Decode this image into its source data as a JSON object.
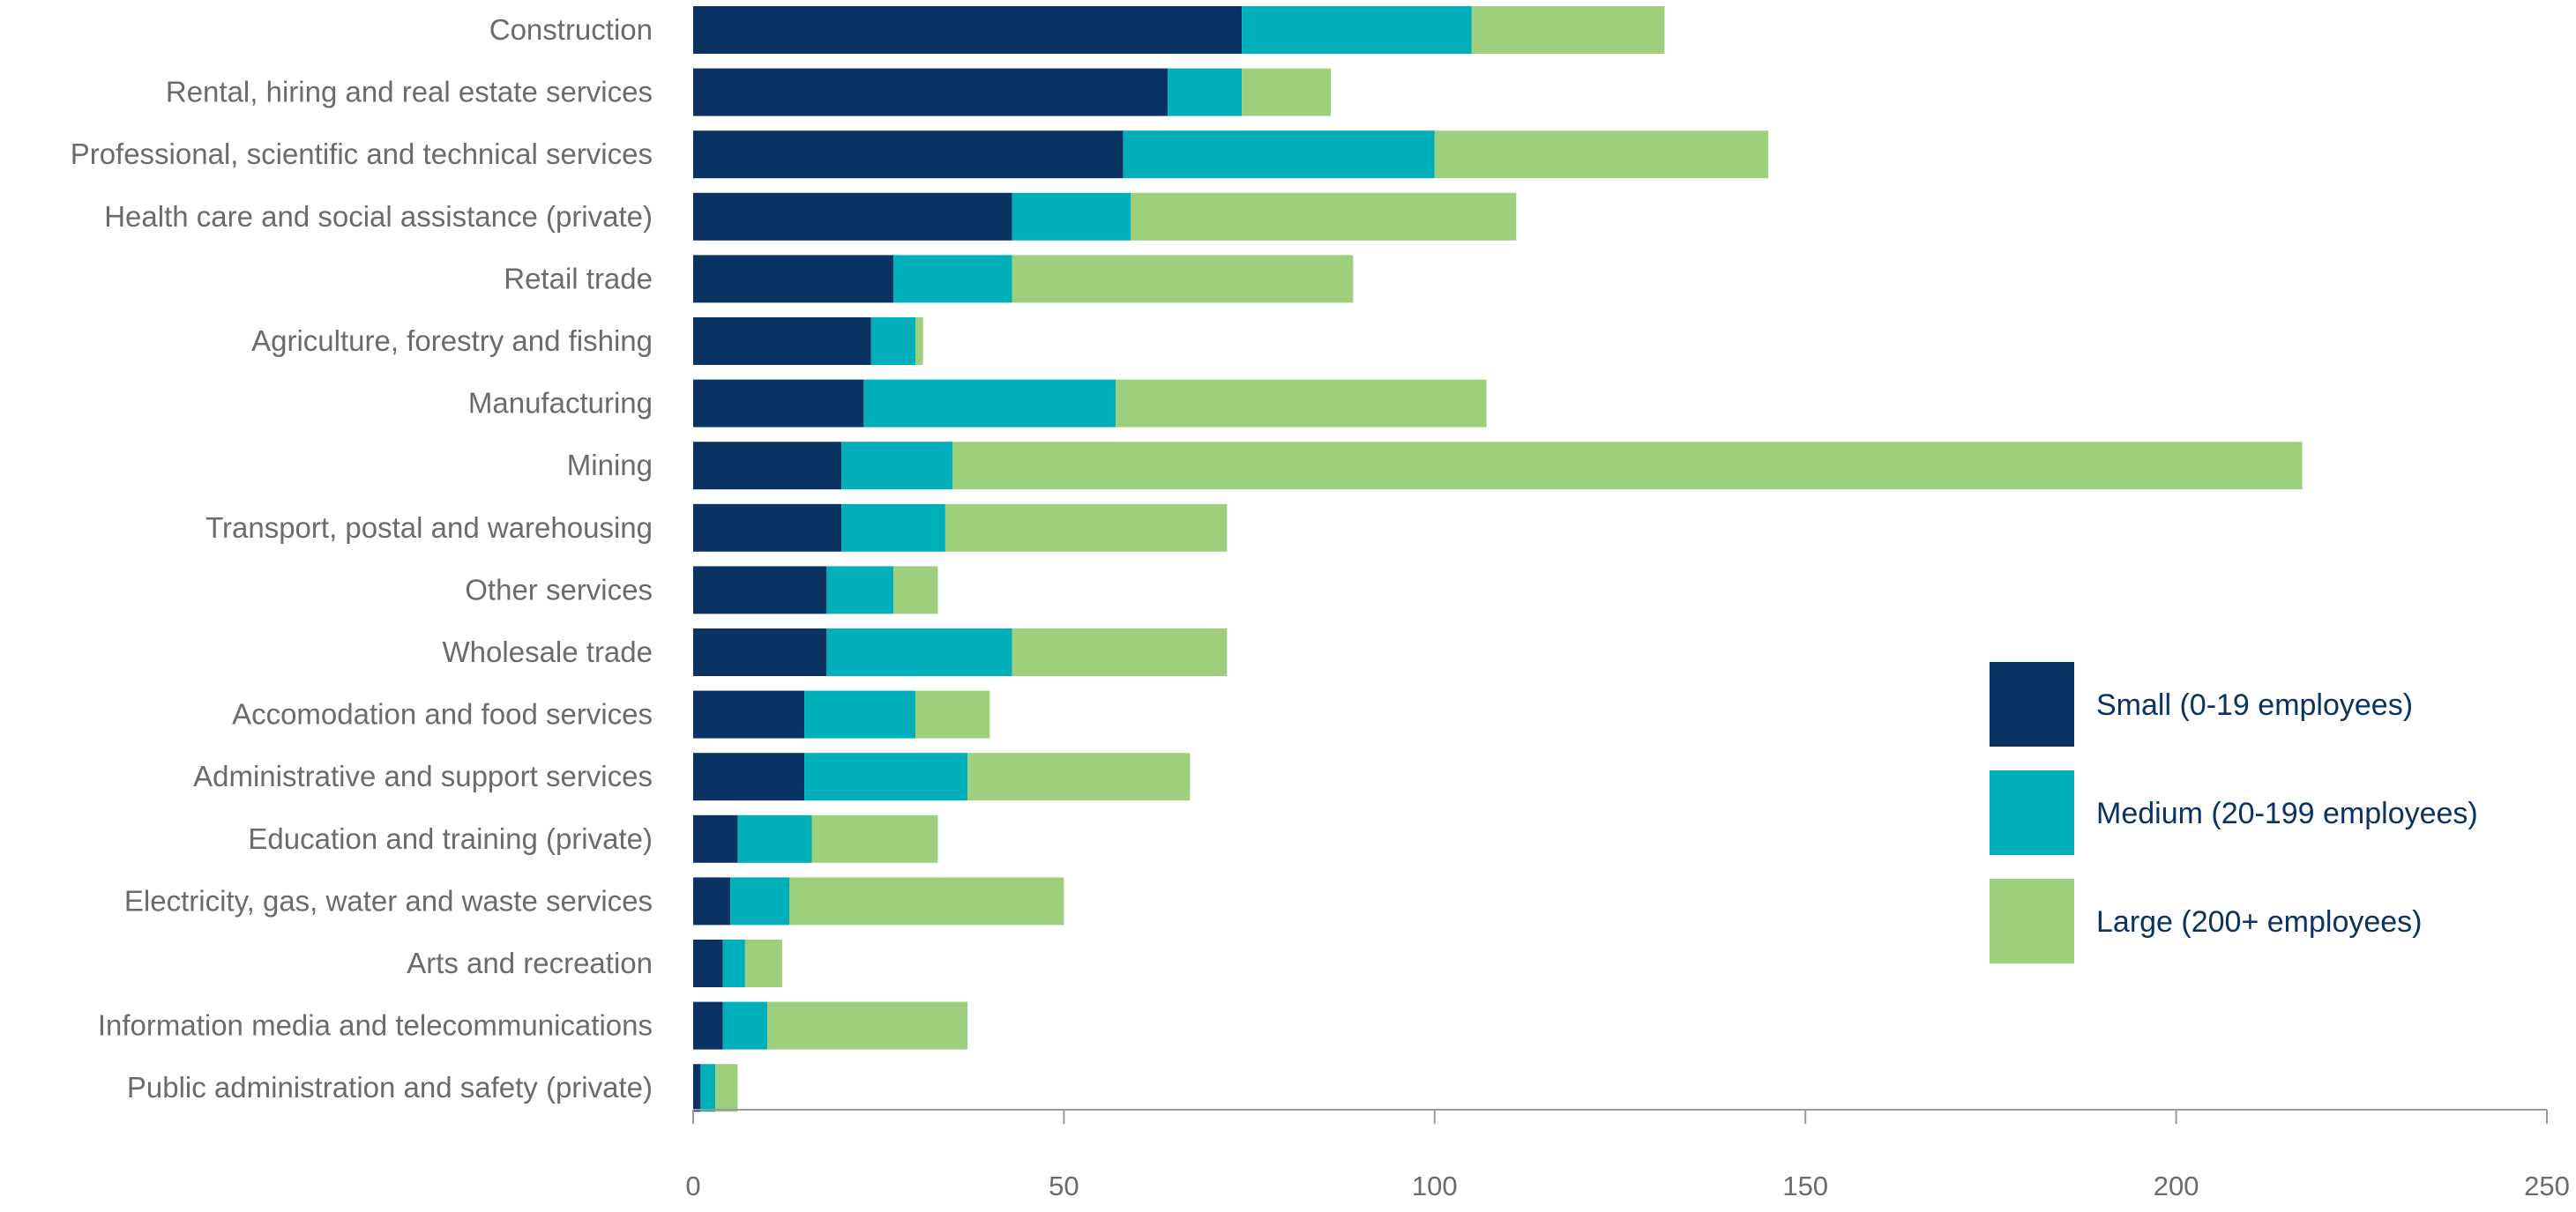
{
  "chart_data": {
    "type": "bar",
    "orientation": "horizontal",
    "stacked": true,
    "title": "",
    "xlabel": "",
    "ylabel": "",
    "xlim": [
      0,
      250
    ],
    "xticks": [
      0,
      50,
      100,
      150,
      200,
      250
    ],
    "grid": false,
    "legend_position": "right",
    "categories": [
      "Construction",
      "Rental, hiring and real estate services",
      "Professional, scientific and technical services",
      "Health care and social assistance (private)",
      "Retail trade",
      "Agriculture, forestry and fishing",
      "Manufacturing",
      "Mining",
      "Transport, postal and warehousing",
      "Other services",
      "Wholesale trade",
      "Accomodation and food services",
      "Administrative and support services",
      "Education and training (private)",
      "Electricity, gas, water and waste services",
      "Arts and recreation",
      "Information media and telecommunications",
      "Public administration and safety (private)"
    ],
    "series": [
      {
        "name": "Small (0-19 employees)",
        "color": "#0a3263",
        "values": [
          74,
          64,
          58,
          43,
          27,
          24,
          23,
          20,
          20,
          18,
          18,
          15,
          15,
          6,
          5,
          4,
          4,
          1
        ]
      },
      {
        "name": "Medium (20-199 employees)",
        "color": "#00afb9",
        "values": [
          31,
          10,
          42,
          16,
          16,
          6,
          34,
          15,
          14,
          9,
          25,
          15,
          22,
          10,
          8,
          3,
          6,
          2
        ]
      },
      {
        "name": "Large (200+ employees)",
        "color": "#9ecf7c",
        "values": [
          26,
          12,
          45,
          52,
          46,
          1,
          50,
          182,
          38,
          6,
          29,
          10,
          30,
          17,
          37,
          5,
          27,
          3
        ]
      }
    ]
  }
}
